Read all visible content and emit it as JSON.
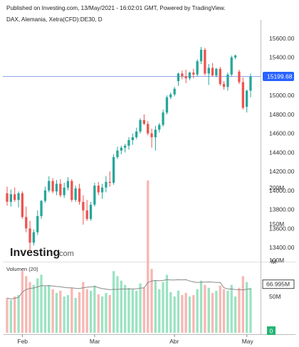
{
  "header": {
    "published": "Published on Investing.com, 13/May/2021 - 16:02:01 GMT, Powered by TradingView.",
    "instrument": "DAX, Alemania, Xetra(CFD):DE30, D"
  },
  "watermark": {
    "brand": "Investing",
    "suffix": ".com"
  },
  "colors": {
    "up": "#26a69a",
    "down": "#ef5350",
    "vol_up": "#9be3c2",
    "vol_down": "#f8b7b3",
    "price_line": "#8fa6e9",
    "badge": "#2962ff",
    "vol_ma": "#8a8a8a",
    "grid_border": "#bdbdbd"
  },
  "price_badge": "15199.68",
  "volume_badge": "66.995M",
  "volume_zero_badge": "0",
  "volume_panel": {
    "title": "Volumen (20)"
  },
  "chart_data": {
    "type": "candlestick",
    "price_axis": {
      "ticks": [
        "15600.00",
        "15400.00",
        "15200.00",
        "15000.00",
        "14800.00",
        "14600.00",
        "14400.00",
        "14200.00",
        "14000.00",
        "13800.00",
        "13600.00",
        "13400.00"
      ],
      "range": [
        13330,
        15690
      ]
    },
    "volume_axis": {
      "ticks": [
        "200M",
        "150M",
        "100M",
        "50M"
      ],
      "partial_top_label": "M",
      "range": [
        0,
        215
      ]
    },
    "x_labels": [
      "Feb",
      "Mar",
      "Abr",
      "May"
    ],
    "last_price": 15199.68,
    "last_volume_ma_M": 66.995,
    "candles": [
      {
        "o": 13970,
        "h": 14040,
        "l": 13840,
        "c": 13880,
        "v": 48
      },
      {
        "o": 13880,
        "h": 14010,
        "l": 13830,
        "c": 13960,
        "v": 45
      },
      {
        "o": 13960,
        "h": 14030,
        "l": 13880,
        "c": 13900,
        "v": 50
      },
      {
        "o": 13900,
        "h": 13990,
        "l": 13820,
        "c": 13970,
        "v": 52
      },
      {
        "o": 13970,
        "h": 13990,
        "l": 13700,
        "c": 13720,
        "v": 85
      },
      {
        "o": 13720,
        "h": 13830,
        "l": 13560,
        "c": 13600,
        "v": 78
      },
      {
        "o": 13600,
        "h": 13680,
        "l": 13360,
        "c": 13450,
        "v": 70
      },
      {
        "o": 13450,
        "h": 13590,
        "l": 13420,
        "c": 13560,
        "v": 66
      },
      {
        "o": 13560,
        "h": 13790,
        "l": 13530,
        "c": 13730,
        "v": 75
      },
      {
        "o": 13730,
        "h": 13900,
        "l": 13700,
        "c": 13890,
        "v": 80
      },
      {
        "o": 13890,
        "h": 14040,
        "l": 13870,
        "c": 14000,
        "v": 64
      },
      {
        "o": 14000,
        "h": 14150,
        "l": 13980,
        "c": 14100,
        "v": 66
      },
      {
        "o": 14100,
        "h": 14130,
        "l": 13970,
        "c": 13990,
        "v": 60
      },
      {
        "o": 13990,
        "h": 14110,
        "l": 13950,
        "c": 14070,
        "v": 55
      },
      {
        "o": 14070,
        "h": 14120,
        "l": 13930,
        "c": 13950,
        "v": 58
      },
      {
        "o": 13950,
        "h": 14080,
        "l": 13920,
        "c": 14030,
        "v": 50
      },
      {
        "o": 14030,
        "h": 14140,
        "l": 14000,
        "c": 14100,
        "v": 52
      },
      {
        "o": 14100,
        "h": 14120,
        "l": 13880,
        "c": 13900,
        "v": 62
      },
      {
        "o": 13900,
        "h": 14050,
        "l": 13880,
        "c": 14020,
        "v": 48
      },
      {
        "o": 14020,
        "h": 14070,
        "l": 13850,
        "c": 13880,
        "v": 56
      },
      {
        "o": 13880,
        "h": 13950,
        "l": 13640,
        "c": 13790,
        "v": 70
      },
      {
        "o": 13790,
        "h": 13900,
        "l": 13680,
        "c": 13700,
        "v": 60
      },
      {
        "o": 13700,
        "h": 13880,
        "l": 13680,
        "c": 13850,
        "v": 58
      },
      {
        "o": 13850,
        "h": 14080,
        "l": 13830,
        "c": 14050,
        "v": 65
      },
      {
        "o": 14050,
        "h": 14090,
        "l": 13950,
        "c": 13980,
        "v": 53
      },
      {
        "o": 13980,
        "h": 14070,
        "l": 13910,
        "c": 14030,
        "v": 50
      },
      {
        "o": 14030,
        "h": 14150,
        "l": 13980,
        "c": 14090,
        "v": 55
      },
      {
        "o": 14090,
        "h": 14200,
        "l": 14040,
        "c": 14080,
        "v": 52
      },
      {
        "o": 14080,
        "h": 14380,
        "l": 14060,
        "c": 14350,
        "v": 85
      },
      {
        "o": 14350,
        "h": 14460,
        "l": 14330,
        "c": 14420,
        "v": 78
      },
      {
        "o": 14420,
        "h": 14470,
        "l": 14380,
        "c": 14450,
        "v": 72
      },
      {
        "o": 14450,
        "h": 14490,
        "l": 14400,
        "c": 14470,
        "v": 66
      },
      {
        "o": 14470,
        "h": 14560,
        "l": 14430,
        "c": 14530,
        "v": 62
      },
      {
        "o": 14530,
        "h": 14600,
        "l": 14480,
        "c": 14560,
        "v": 60
      },
      {
        "o": 14560,
        "h": 14660,
        "l": 14540,
        "c": 14620,
        "v": 58
      },
      {
        "o": 14620,
        "h": 14760,
        "l": 14600,
        "c": 14740,
        "v": 68
      },
      {
        "o": 14740,
        "h": 14800,
        "l": 14690,
        "c": 14700,
        "v": 62
      },
      {
        "o": 14700,
        "h": 14730,
        "l": 14580,
        "c": 14600,
        "v": 210
      },
      {
        "o": 14600,
        "h": 14650,
        "l": 14450,
        "c": 14560,
        "v": 88
      },
      {
        "o": 14560,
        "h": 14680,
        "l": 14420,
        "c": 14640,
        "v": 72
      },
      {
        "o": 14640,
        "h": 14710,
        "l": 14610,
        "c": 14690,
        "v": 60
      },
      {
        "o": 14690,
        "h": 14850,
        "l": 14670,
        "c": 14820,
        "v": 70
      },
      {
        "o": 14820,
        "h": 15000,
        "l": 14800,
        "c": 14980,
        "v": 80
      },
      {
        "o": 14980,
        "h": 15030,
        "l": 14960,
        "c": 15010,
        "v": 56
      },
      {
        "o": 15010,
        "h": 15090,
        "l": 14990,
        "c": 15070,
        "v": 50
      },
      {
        "o": 15150,
        "h": 15240,
        "l": 15100,
        "c": 15230,
        "v": 58
      },
      {
        "o": 15230,
        "h": 15260,
        "l": 15170,
        "c": 15200,
        "v": 52
      },
      {
        "o": 15200,
        "h": 15270,
        "l": 15130,
        "c": 15180,
        "v": 55
      },
      {
        "o": 15180,
        "h": 15250,
        "l": 15160,
        "c": 15240,
        "v": 50
      },
      {
        "o": 15240,
        "h": 15280,
        "l": 15180,
        "c": 15220,
        "v": 52
      },
      {
        "o": 15220,
        "h": 15380,
        "l": 15200,
        "c": 15360,
        "v": 60
      },
      {
        "o": 15360,
        "h": 15510,
        "l": 15330,
        "c": 15480,
        "v": 72
      },
      {
        "o": 15480,
        "h": 15500,
        "l": 15210,
        "c": 15230,
        "v": 66
      },
      {
        "o": 15230,
        "h": 15330,
        "l": 15110,
        "c": 15290,
        "v": 62
      },
      {
        "o": 15290,
        "h": 15340,
        "l": 15200,
        "c": 15210,
        "v": 55
      },
      {
        "o": 15210,
        "h": 15290,
        "l": 15190,
        "c": 15280,
        "v": 58
      },
      {
        "o": 15280,
        "h": 15300,
        "l": 15100,
        "c": 15120,
        "v": 65
      },
      {
        "o": 15120,
        "h": 15150,
        "l": 15060,
        "c": 15090,
        "v": 60
      },
      {
        "o": 15090,
        "h": 15240,
        "l": 15050,
        "c": 15220,
        "v": 58
      },
      {
        "o": 15220,
        "h": 15420,
        "l": 15200,
        "c": 15400,
        "v": 66
      },
      {
        "o": 15400,
        "h": 15430,
        "l": 15380,
        "c": 15420,
        "v": 50
      },
      {
        "o": 15250,
        "h": 15270,
        "l": 15120,
        "c": 15140,
        "v": 62
      },
      {
        "o": 15140,
        "h": 15190,
        "l": 14850,
        "c": 14870,
        "v": 78
      },
      {
        "o": 14880,
        "h": 15060,
        "l": 14820,
        "c": 15050,
        "v": 70
      },
      {
        "o": 15050,
        "h": 15230,
        "l": 14980,
        "c": 15200,
        "v": 62
      }
    ]
  }
}
